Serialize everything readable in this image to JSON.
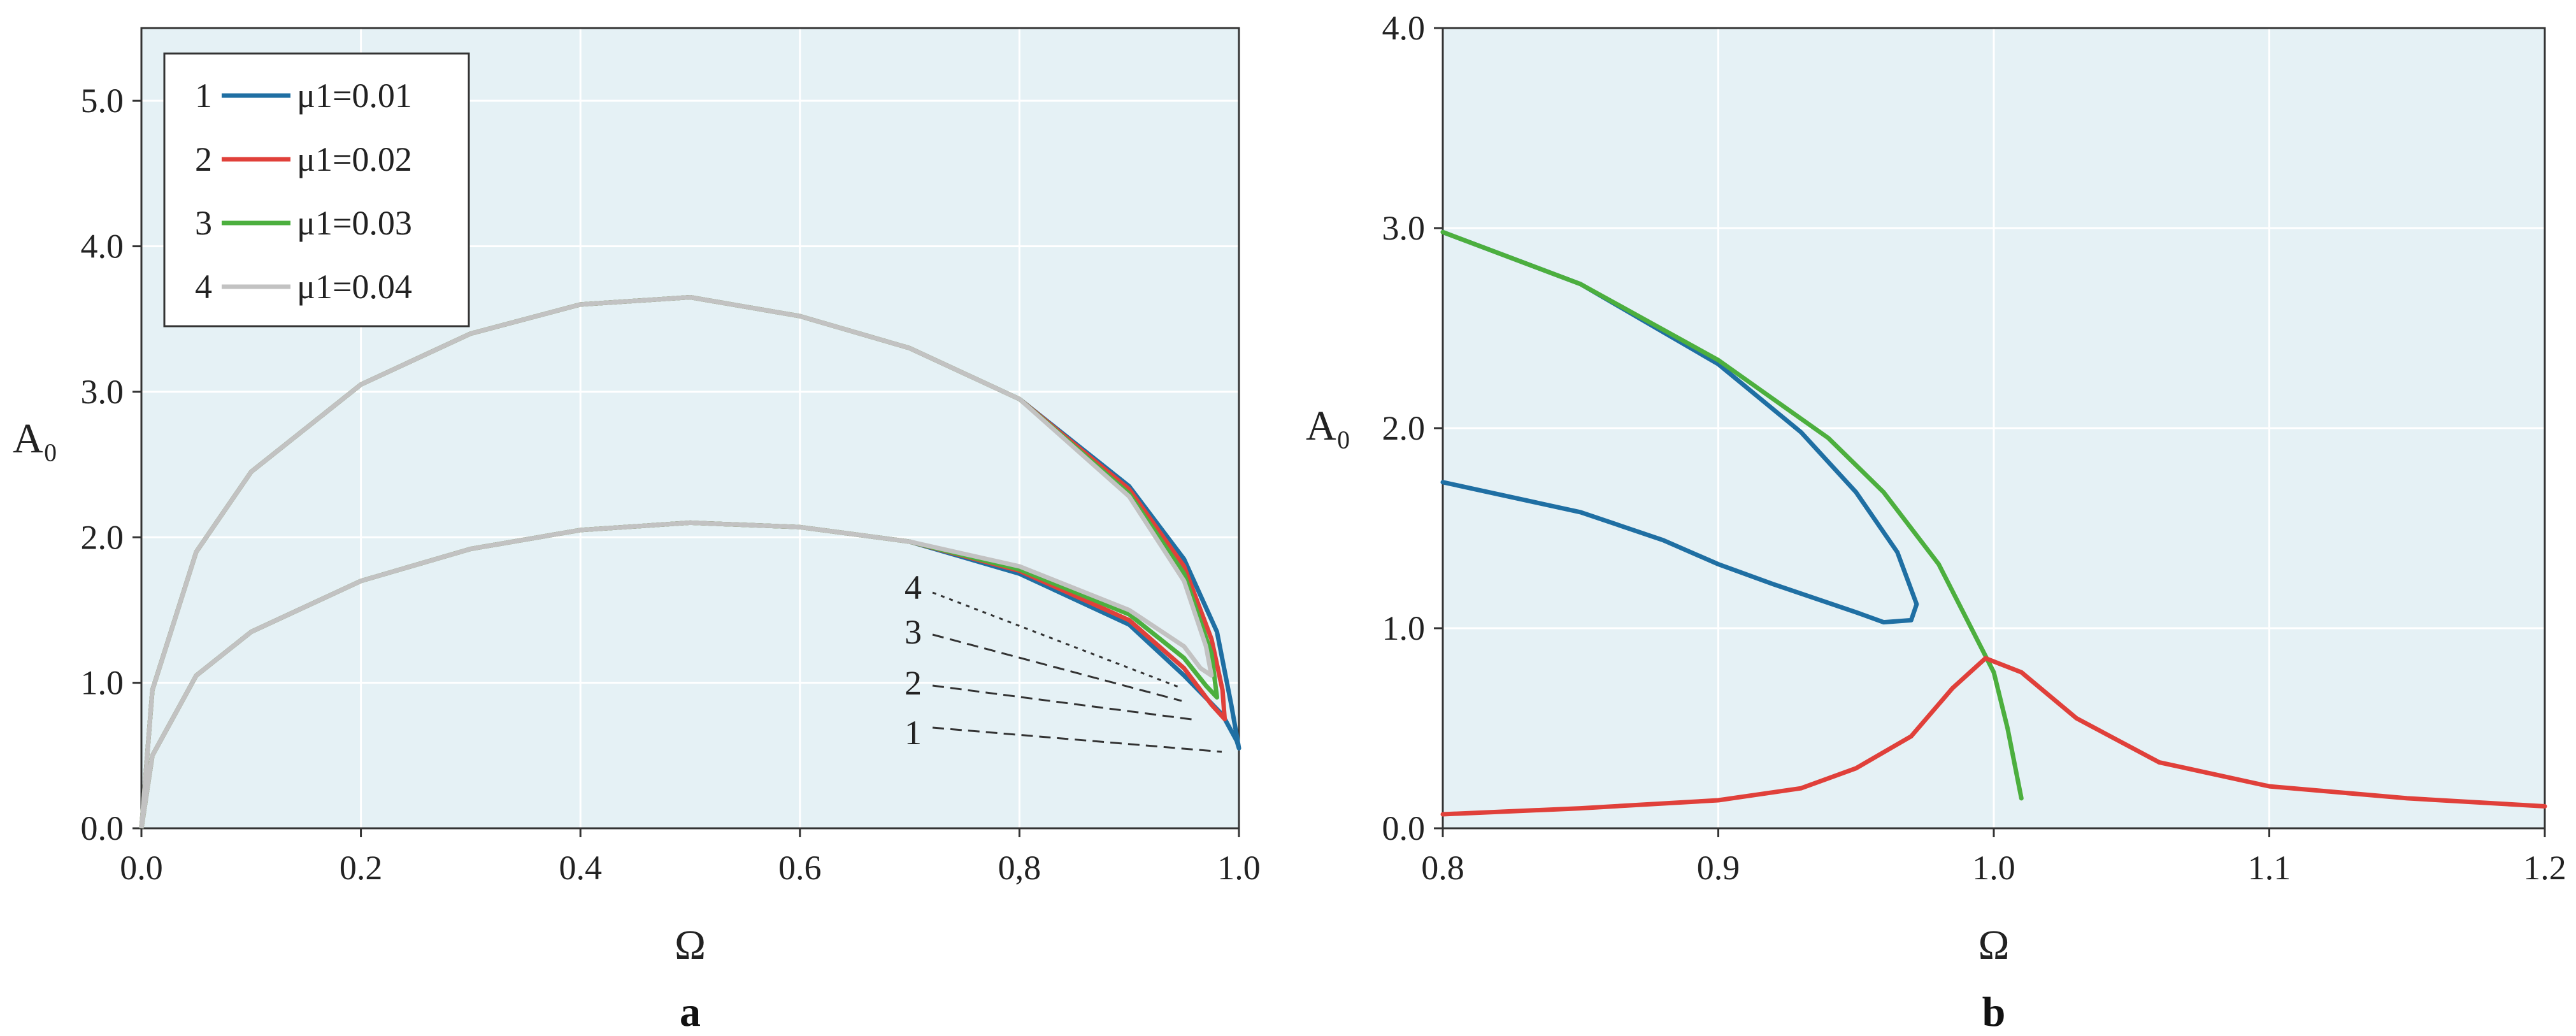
{
  "chart_data": [
    {
      "panel_label": "a",
      "type": "line",
      "xlabel": "Ω",
      "ylabel": "A₀",
      "xlim": [
        0,
        1.0
      ],
      "ylim": [
        0,
        5.5
      ],
      "xticks": [
        "0.0",
        "0.2",
        "0.4",
        "0.6",
        "0,8",
        "1.0"
      ],
      "yticks": [
        "0.0",
        "1.0",
        "2.0",
        "3.0",
        "4.0",
        "5.0"
      ],
      "grid": true,
      "legend_position": "top-left",
      "colors": [
        "#1f6fa3",
        "#e0403a",
        "#4caf3e",
        "#c2c2c2"
      ],
      "annotation_labels": [
        "4",
        "3",
        "2",
        "1"
      ],
      "series": [
        {
          "legend_number": "1",
          "name": "μ1=0.01",
          "upper": [
            [
              0,
              0
            ],
            [
              0.01,
              0.95
            ],
            [
              0.05,
              1.9
            ],
            [
              0.1,
              2.45
            ],
            [
              0.2,
              3.05
            ],
            [
              0.3,
              3.4
            ],
            [
              0.4,
              3.6
            ],
            [
              0.5,
              3.65
            ],
            [
              0.6,
              3.52
            ],
            [
              0.7,
              3.3
            ],
            [
              0.8,
              2.95
            ],
            [
              0.9,
              2.35
            ],
            [
              0.95,
              1.85
            ],
            [
              0.98,
              1.35
            ],
            [
              0.993,
              0.85
            ],
            [
              1.0,
              0.55
            ]
          ],
          "lower": [
            [
              0,
              0
            ],
            [
              0.01,
              0.5
            ],
            [
              0.05,
              1.05
            ],
            [
              0.1,
              1.35
            ],
            [
              0.2,
              1.7
            ],
            [
              0.3,
              1.92
            ],
            [
              0.4,
              2.05
            ],
            [
              0.5,
              2.1
            ],
            [
              0.6,
              2.07
            ],
            [
              0.7,
              1.97
            ],
            [
              0.8,
              1.75
            ],
            [
              0.9,
              1.4
            ],
            [
              0.95,
              1.05
            ],
            [
              0.985,
              0.78
            ],
            [
              0.998,
              0.6
            ],
            [
              1.0,
              0.55
            ]
          ]
        },
        {
          "legend_number": "2",
          "name": "μ1=0.02",
          "upper": [
            [
              0,
              0
            ],
            [
              0.01,
              0.95
            ],
            [
              0.05,
              1.9
            ],
            [
              0.1,
              2.45
            ],
            [
              0.2,
              3.05
            ],
            [
              0.3,
              3.4
            ],
            [
              0.4,
              3.6
            ],
            [
              0.5,
              3.65
            ],
            [
              0.6,
              3.52
            ],
            [
              0.7,
              3.3
            ],
            [
              0.8,
              2.95
            ],
            [
              0.9,
              2.33
            ],
            [
              0.95,
              1.8
            ],
            [
              0.975,
              1.3
            ],
            [
              0.985,
              0.95
            ],
            [
              0.987,
              0.75
            ]
          ],
          "lower": [
            [
              0,
              0
            ],
            [
              0.01,
              0.5
            ],
            [
              0.05,
              1.05
            ],
            [
              0.1,
              1.35
            ],
            [
              0.2,
              1.7
            ],
            [
              0.3,
              1.92
            ],
            [
              0.4,
              2.05
            ],
            [
              0.5,
              2.1
            ],
            [
              0.6,
              2.07
            ],
            [
              0.7,
              1.97
            ],
            [
              0.8,
              1.77
            ],
            [
              0.9,
              1.43
            ],
            [
              0.95,
              1.1
            ],
            [
              0.975,
              0.85
            ],
            [
              0.987,
              0.75
            ]
          ]
        },
        {
          "legend_number": "3",
          "name": "μ1=0.03",
          "upper": [
            [
              0,
              0
            ],
            [
              0.01,
              0.95
            ],
            [
              0.05,
              1.9
            ],
            [
              0.1,
              2.45
            ],
            [
              0.2,
              3.05
            ],
            [
              0.3,
              3.4
            ],
            [
              0.4,
              3.6
            ],
            [
              0.5,
              3.65
            ],
            [
              0.6,
              3.52
            ],
            [
              0.7,
              3.3
            ],
            [
              0.8,
              2.95
            ],
            [
              0.9,
              2.3
            ],
            [
              0.95,
              1.75
            ],
            [
              0.975,
              1.2
            ],
            [
              0.98,
              0.9
            ]
          ],
          "lower": [
            [
              0,
              0
            ],
            [
              0.01,
              0.5
            ],
            [
              0.05,
              1.05
            ],
            [
              0.1,
              1.35
            ],
            [
              0.2,
              1.7
            ],
            [
              0.3,
              1.92
            ],
            [
              0.4,
              2.05
            ],
            [
              0.5,
              2.1
            ],
            [
              0.6,
              2.07
            ],
            [
              0.7,
              1.97
            ],
            [
              0.8,
              1.78
            ],
            [
              0.9,
              1.47
            ],
            [
              0.95,
              1.17
            ],
            [
              0.97,
              0.98
            ],
            [
              0.98,
              0.9
            ]
          ]
        },
        {
          "legend_number": "4",
          "name": "μ1=0.04",
          "upper": [
            [
              0,
              0
            ],
            [
              0.01,
              0.95
            ],
            [
              0.05,
              1.9
            ],
            [
              0.1,
              2.45
            ],
            [
              0.2,
              3.05
            ],
            [
              0.3,
              3.4
            ],
            [
              0.4,
              3.6
            ],
            [
              0.5,
              3.65
            ],
            [
              0.6,
              3.52
            ],
            [
              0.7,
              3.3
            ],
            [
              0.8,
              2.95
            ],
            [
              0.9,
              2.28
            ],
            [
              0.95,
              1.7
            ],
            [
              0.97,
              1.25
            ],
            [
              0.975,
              1.05
            ]
          ],
          "lower": [
            [
              0,
              0
            ],
            [
              0.01,
              0.5
            ],
            [
              0.05,
              1.05
            ],
            [
              0.1,
              1.35
            ],
            [
              0.2,
              1.7
            ],
            [
              0.3,
              1.92
            ],
            [
              0.4,
              2.05
            ],
            [
              0.5,
              2.1
            ],
            [
              0.6,
              2.07
            ],
            [
              0.7,
              1.97
            ],
            [
              0.8,
              1.8
            ],
            [
              0.9,
              1.5
            ],
            [
              0.95,
              1.25
            ],
            [
              0.965,
              1.1
            ],
            [
              0.975,
              1.05
            ]
          ]
        }
      ]
    },
    {
      "panel_label": "b",
      "type": "line",
      "xlabel": "Ω",
      "ylabel": "A₀",
      "xlim": [
        0.8,
        1.2
      ],
      "ylim": [
        0,
        4.0
      ],
      "xticks": [
        "0.8",
        "0.9",
        "1.0",
        "1.1",
        "1.2"
      ],
      "yticks": [
        "0.0",
        "1.0",
        "2.0",
        "3.0",
        "4.0"
      ],
      "grid": true,
      "colors": [
        "#1f6fa3",
        "#4caf3e",
        "#e0403a"
      ],
      "series": [
        {
          "points": [
            [
              0.8,
              2.98
            ],
            [
              0.85,
              2.72
            ],
            [
              0.9,
              2.32
            ],
            [
              0.93,
              1.98
            ],
            [
              0.95,
              1.68
            ],
            [
              0.965,
              1.38
            ],
            [
              0.972,
              1.12
            ],
            [
              0.97,
              1.04
            ],
            [
              0.96,
              1.03
            ],
            [
              0.95,
              1.08
            ],
            [
              0.92,
              1.22
            ],
            [
              0.9,
              1.32
            ],
            [
              0.88,
              1.44
            ],
            [
              0.85,
              1.58
            ],
            [
              0.8,
              1.73
            ]
          ]
        },
        {
          "points": [
            [
              0.8,
              2.98
            ],
            [
              0.85,
              2.72
            ],
            [
              0.9,
              2.34
            ],
            [
              0.94,
              1.95
            ],
            [
              0.96,
              1.68
            ],
            [
              0.98,
              1.32
            ],
            [
              0.99,
              1.05
            ],
            [
              1.0,
              0.78
            ],
            [
              1.005,
              0.5
            ],
            [
              1.01,
              0.15
            ]
          ]
        },
        {
          "points": [
            [
              0.8,
              0.07
            ],
            [
              0.85,
              0.1
            ],
            [
              0.9,
              0.14
            ],
            [
              0.93,
              0.2
            ],
            [
              0.95,
              0.3
            ],
            [
              0.97,
              0.46
            ],
            [
              0.985,
              0.7
            ],
            [
              0.997,
              0.85
            ],
            [
              1.01,
              0.78
            ],
            [
              1.03,
              0.55
            ],
            [
              1.06,
              0.33
            ],
            [
              1.1,
              0.21
            ],
            [
              1.15,
              0.15
            ],
            [
              1.2,
              0.11
            ]
          ]
        }
      ]
    }
  ]
}
